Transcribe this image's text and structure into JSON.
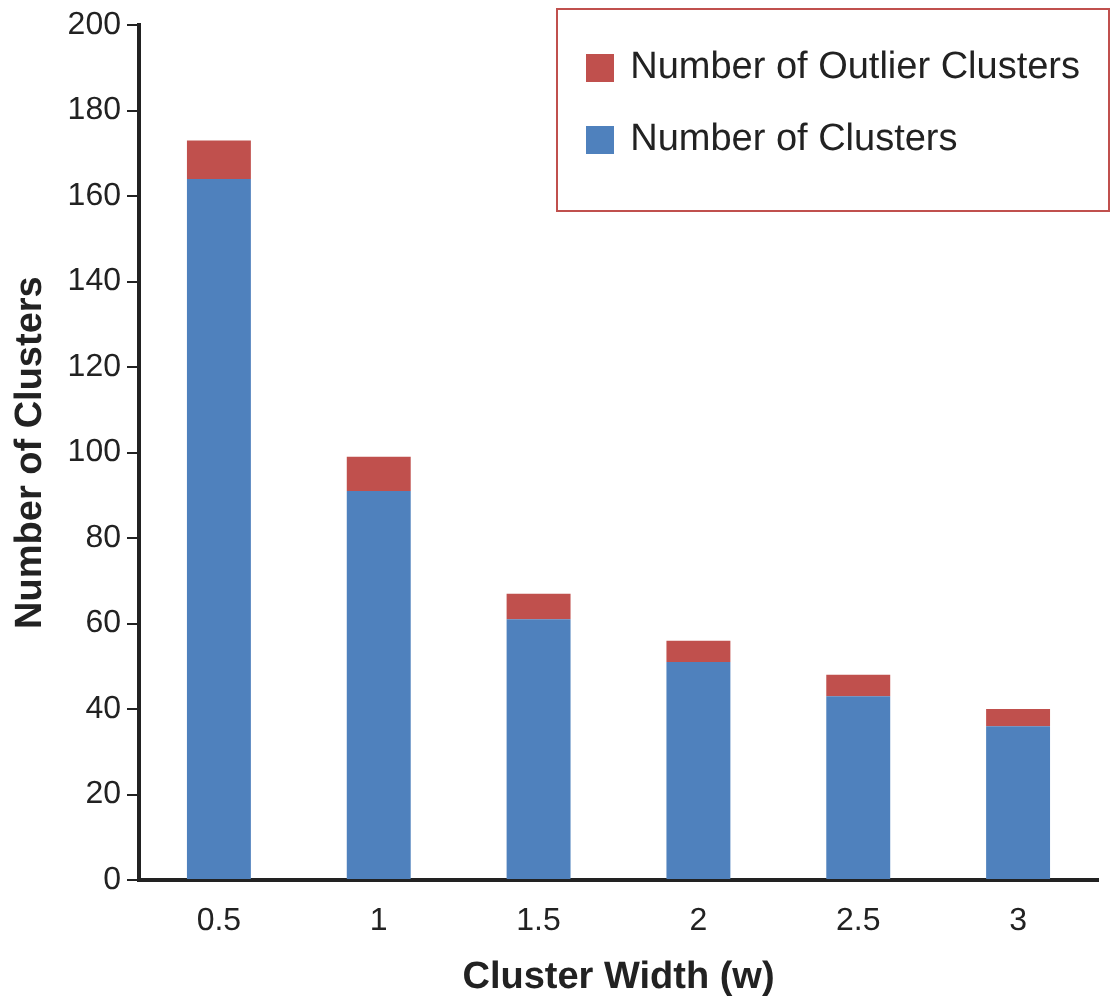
{
  "chart_data": {
    "type": "bar",
    "stacked": true,
    "xlabel": "Cluster Width (w)",
    "ylabel": "Number of Clusters",
    "categories": [
      "0.5",
      "1",
      "1.5",
      "2",
      "2.5",
      "3"
    ],
    "series": [
      {
        "name": "Number of Clusters",
        "color": "#4f81bd",
        "values": [
          164,
          91,
          61,
          51,
          43,
          36
        ]
      },
      {
        "name": "Number of Outlier Clusters",
        "color": "#c0504d",
        "values": [
          9,
          8,
          6,
          5,
          5,
          4
        ]
      }
    ],
    "ylim": [
      0,
      200
    ],
    "yticks": [
      0,
      20,
      40,
      60,
      80,
      100,
      120,
      140,
      160,
      180,
      200
    ],
    "grid": false,
    "legend": "top right"
  }
}
